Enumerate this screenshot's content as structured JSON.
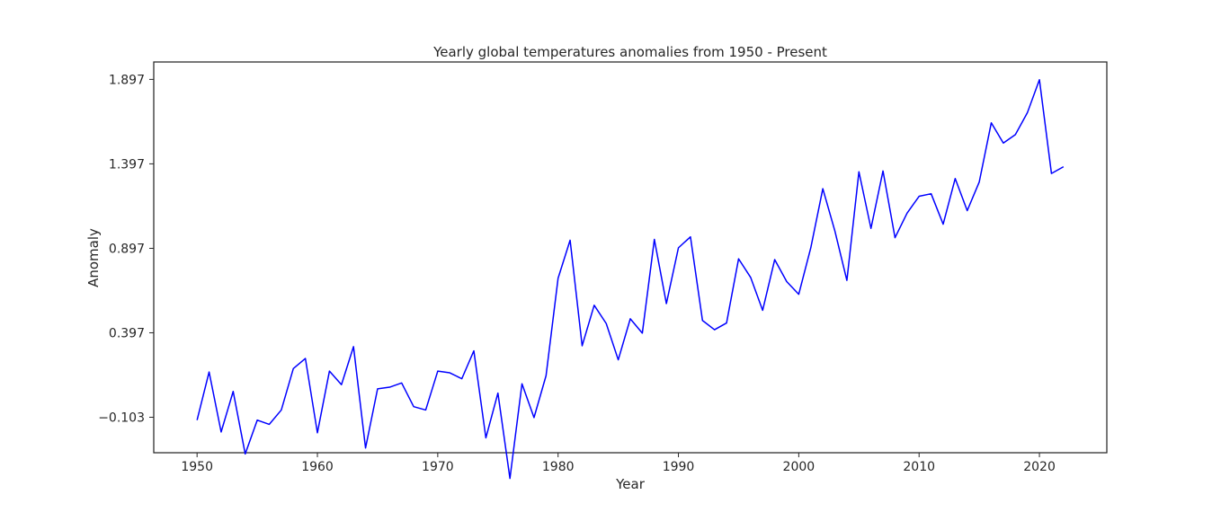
{
  "chart_data": {
    "type": "line",
    "title": "Yearly global temperatures anomalies from 1950 - Present",
    "xlabel": "Year",
    "ylabel": "Anomaly",
    "xlim": [
      1946.4,
      2025.6
    ],
    "ylim": [
      -0.313,
      2.0
    ],
    "x_ticks": [
      1950,
      1960,
      1970,
      1980,
      1990,
      2000,
      2010,
      2020
    ],
    "x_tick_labels": [
      "1950",
      "1960",
      "1970",
      "1980",
      "1990",
      "2000",
      "2010",
      "2020"
    ],
    "y_ticks": [
      -0.103,
      0.397,
      0.897,
      1.397,
      1.897
    ],
    "y_tick_labels": [
      "−0.103",
      "0.397",
      "0.897",
      "1.397",
      "1.897"
    ],
    "grid": false,
    "series": [
      {
        "color": "#0000ff",
        "x": [
          1950,
          1951,
          1952,
          1953,
          1954,
          1955,
          1956,
          1957,
          1958,
          1959,
          1960,
          1961,
          1962,
          1963,
          1964,
          1965,
          1966,
          1967,
          1968,
          1969,
          1970,
          1971,
          1972,
          1973,
          1974,
          1975,
          1976,
          1977,
          1978,
          1979,
          1980,
          1981,
          1982,
          1983,
          1984,
          1985,
          1986,
          1987,
          1988,
          1989,
          1990,
          1991,
          1992,
          1993,
          1994,
          1995,
          1996,
          1997,
          1998,
          1999,
          2000,
          2001,
          2002,
          2003,
          2004,
          2005,
          2006,
          2007,
          2008,
          2009,
          2010,
          2011,
          2012,
          2013,
          2014,
          2015,
          2016,
          2017,
          2018,
          2019,
          2020,
          2021,
          2022
        ],
        "values": [
          -0.12,
          0.165,
          -0.19,
          0.05,
          -0.32,
          -0.12,
          -0.145,
          -0.06,
          0.185,
          0.245,
          -0.195,
          0.17,
          0.09,
          0.315,
          -0.285,
          0.065,
          0.075,
          0.1,
          -0.04,
          -0.06,
          0.17,
          0.16,
          0.125,
          0.29,
          -0.225,
          0.04,
          -0.465,
          0.095,
          -0.105,
          0.143,
          0.72,
          0.945,
          0.32,
          0.56,
          0.452,
          0.237,
          0.48,
          0.395,
          0.95,
          0.57,
          0.9,
          0.965,
          0.47,
          0.415,
          0.455,
          0.835,
          0.725,
          0.53,
          0.83,
          0.7,
          0.625,
          0.9,
          1.25,
          1.0,
          0.707,
          1.35,
          1.015,
          1.355,
          0.96,
          1.105,
          1.205,
          1.22,
          1.04,
          1.31,
          1.12,
          1.29,
          1.64,
          1.52,
          1.57,
          1.7,
          1.895,
          1.34,
          1.38
        ]
      }
    ]
  }
}
